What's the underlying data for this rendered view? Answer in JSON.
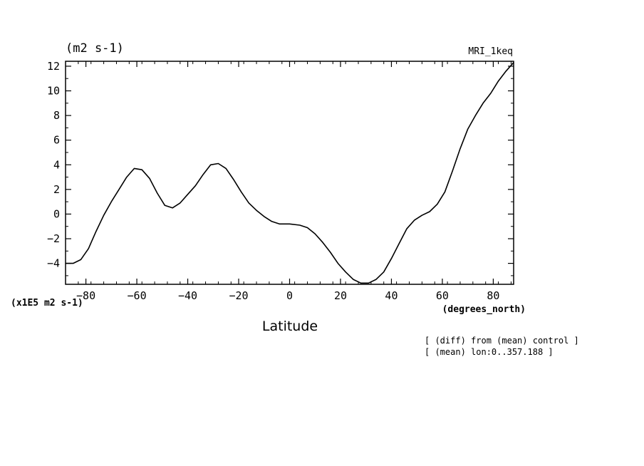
{
  "chart_data": {
    "type": "line",
    "title": "(m2 s-1)",
    "subtitle": "MRI_1keq",
    "xlabel": "Latitude",
    "xunits": "(degrees_north)",
    "yscale_note": "(x1E5 m2 s-1)",
    "notes": [
      "[ (diff) from (mean) control ]",
      "[ (mean) lon:0..357.188 ]"
    ],
    "xlim": [
      -88,
      88
    ],
    "ylim": [
      -5.7,
      12.4
    ],
    "xticks": [
      -80,
      -60,
      -40,
      -20,
      0,
      20,
      40,
      60,
      80
    ],
    "yticks": [
      -4,
      -2,
      0,
      2,
      4,
      6,
      8,
      10,
      12
    ],
    "grid": false,
    "color": "#000000",
    "x": [
      -88,
      -85,
      -82,
      -79,
      -76,
      -73,
      -70,
      -67,
      -64,
      -61,
      -58,
      -55,
      -52,
      -49,
      -46,
      -43,
      -40,
      -37,
      -34,
      -31,
      -28,
      -25,
      -22,
      -19,
      -16,
      -13,
      -10,
      -7,
      -4,
      0,
      4,
      7,
      10,
      13,
      16,
      19,
      22,
      25,
      28,
      31,
      34,
      37,
      40,
      43,
      46,
      49,
      52,
      55,
      58,
      61,
      64,
      67,
      70,
      73,
      76,
      79,
      82,
      85,
      88
    ],
    "y": [
      -4.0,
      -4.0,
      -3.7,
      -2.8,
      -1.4,
      -0.1,
      1.0,
      2.0,
      3.0,
      3.7,
      3.6,
      2.9,
      1.7,
      0.7,
      0.5,
      0.9,
      1.6,
      2.3,
      3.2,
      4.0,
      4.1,
      3.7,
      2.8,
      1.8,
      0.9,
      0.3,
      -0.2,
      -0.6,
      -0.8,
      -0.8,
      -0.9,
      -1.1,
      -1.6,
      -2.3,
      -3.1,
      -4.0,
      -4.7,
      -5.3,
      -5.6,
      -5.6,
      -5.3,
      -4.7,
      -3.6,
      -2.4,
      -1.2,
      -0.5,
      -0.1,
      0.2,
      0.8,
      1.8,
      3.5,
      5.3,
      6.9,
      8.0,
      9.0,
      9.8,
      10.8,
      11.6,
      12.3
    ]
  }
}
